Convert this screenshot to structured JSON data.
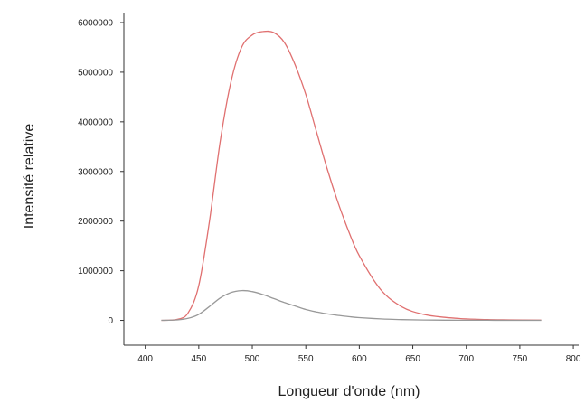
{
  "chart_data": {
    "type": "line",
    "title": "",
    "xlabel": "Longueur d'onde (nm)",
    "ylabel": "Intensité relative",
    "xlim": [
      380,
      805
    ],
    "ylim": [
      -500000,
      6200000
    ],
    "x_ticks": [
      400,
      450,
      500,
      550,
      600,
      650,
      700,
      750,
      800
    ],
    "y_ticks": [
      0,
      1000000,
      2000000,
      3000000,
      4000000,
      5000000,
      6000000
    ],
    "x_tick_labels": [
      "400",
      "450",
      "500",
      "550",
      "600",
      "650",
      "700",
      "750",
      "800"
    ],
    "y_tick_labels": [
      "0",
      "1000000",
      "2000000",
      "3000000",
      "4000000",
      "5000000",
      "6000000"
    ],
    "grid": false,
    "series": [
      {
        "color": "#e07070",
        "x": [
          415,
          430,
          440,
          450,
          460,
          470,
          480,
          490,
          500,
          510,
          520,
          530,
          540,
          550,
          560,
          570,
          580,
          590,
          600,
          620,
          640,
          660,
          680,
          700,
          720,
          740,
          770
        ],
        "values": [
          0,
          20000,
          150000,
          700000,
          2000000,
          3600000,
          4800000,
          5500000,
          5750000,
          5820000,
          5800000,
          5600000,
          5150000,
          4550000,
          3800000,
          3050000,
          2380000,
          1800000,
          1300000,
          620000,
          270000,
          120000,
          60000,
          30000,
          15000,
          10000,
          5000
        ]
      },
      {
        "color": "#999999",
        "x": [
          415,
          430,
          440,
          450,
          460,
          470,
          480,
          490,
          500,
          510,
          520,
          530,
          540,
          550,
          560,
          570,
          580,
          590,
          600,
          620,
          640,
          660,
          680,
          700,
          720,
          740,
          770
        ],
        "values": [
          0,
          10000,
          40000,
          120000,
          280000,
          450000,
          560000,
          600000,
          580000,
          520000,
          440000,
          360000,
          290000,
          220000,
          170000,
          130000,
          100000,
          75000,
          55000,
          30000,
          15000,
          8000,
          5000,
          3000,
          2000,
          1000,
          0
        ]
      }
    ]
  }
}
